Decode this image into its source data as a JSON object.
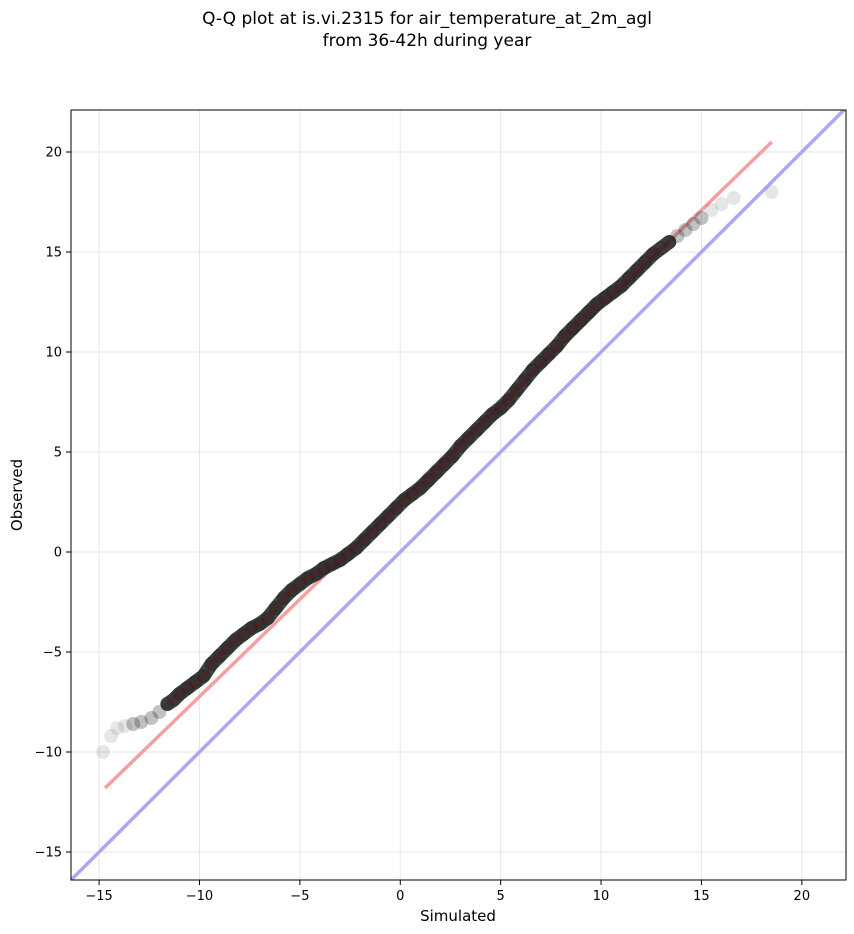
{
  "chart_data": {
    "type": "scatter",
    "title_line1": "Q-Q plot at is.vi.2315 for air_temperature_at_2m_agl",
    "title_line2": "from 36-42h during year",
    "xlabel": "Simulated",
    "ylabel": "Observed",
    "xlim": [
      -16.4,
      22.2
    ],
    "ylim": [
      -16.4,
      22.1
    ],
    "xticks": [
      -15,
      -10,
      -5,
      0,
      5,
      10,
      15,
      20
    ],
    "yticks": [
      -15,
      -10,
      -5,
      0,
      5,
      10,
      15,
      20
    ],
    "xtick_labels": [
      "−15",
      "−10",
      "−5",
      "0",
      "5",
      "10",
      "15",
      "20"
    ],
    "ytick_labels": [
      "−15",
      "−10",
      "−5",
      "0",
      "5",
      "10",
      "15",
      "20"
    ],
    "grid": true,
    "point_color": "#333333",
    "fit_line_color": "#f4a0a0",
    "identity_line_color": "#a8a8f4",
    "fit_line": {
      "x": [
        -14.7,
        18.5
      ],
      "y": [
        -11.8,
        20.5
      ]
    },
    "identity_line": {
      "x": [
        -16.4,
        22.2
      ],
      "y": [
        -16.4,
        22.2
      ]
    },
    "quantiles": {
      "x": [
        -14.8,
        -14.4,
        -14.1,
        -13.7,
        -13.3,
        -12.9,
        -12.4,
        -12.0,
        -11.6,
        -11.3,
        -11.0,
        -10.6,
        -10.2,
        -9.8,
        -9.4,
        -9.0,
        -8.6,
        -8.2,
        -7.8,
        -7.4,
        -7.0,
        -6.6,
        -6.2,
        -5.8,
        -5.4,
        -5.0,
        -4.6,
        -4.2,
        -3.8,
        -3.4,
        -3.0,
        -2.6,
        -2.2,
        -1.8,
        -1.4,
        -1.0,
        -0.6,
        -0.2,
        0.2,
        0.6,
        1.0,
        1.4,
        1.8,
        2.2,
        2.6,
        3.0,
        3.4,
        3.8,
        4.2,
        4.6,
        5.0,
        5.4,
        5.8,
        6.2,
        6.6,
        7.0,
        7.4,
        7.8,
        8.2,
        8.6,
        9.0,
        9.4,
        9.8,
        10.2,
        10.6,
        11.0,
        11.4,
        11.8,
        12.2,
        12.6,
        13.0,
        13.4,
        13.8,
        14.2,
        14.6,
        15.0,
        15.5,
        16.0,
        16.6,
        18.5
      ],
      "y": [
        -10.0,
        -9.2,
        -8.8,
        -8.7,
        -8.6,
        -8.5,
        -8.3,
        -8.0,
        -7.6,
        -7.4,
        -7.1,
        -6.8,
        -6.5,
        -6.2,
        -5.6,
        -5.2,
        -4.8,
        -4.4,
        -4.1,
        -3.8,
        -3.6,
        -3.3,
        -2.8,
        -2.3,
        -1.9,
        -1.6,
        -1.3,
        -1.1,
        -0.8,
        -0.6,
        -0.4,
        -0.1,
        0.2,
        0.6,
        1.0,
        1.4,
        1.8,
        2.2,
        2.6,
        2.9,
        3.2,
        3.6,
        4.0,
        4.4,
        4.8,
        5.3,
        5.7,
        6.1,
        6.5,
        6.9,
        7.2,
        7.6,
        8.1,
        8.6,
        9.1,
        9.5,
        9.9,
        10.3,
        10.8,
        11.2,
        11.6,
        12.0,
        12.4,
        12.7,
        13.0,
        13.3,
        13.7,
        14.1,
        14.5,
        14.9,
        15.2,
        15.5,
        15.8,
        16.1,
        16.4,
        16.7,
        17.1,
        17.4,
        17.7,
        18.0
      ]
    }
  }
}
